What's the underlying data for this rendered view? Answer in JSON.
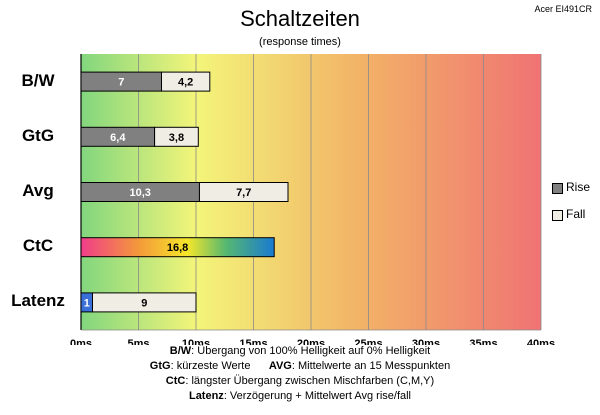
{
  "header": {
    "title": "Schaltzeiten",
    "subtitle": "(response times)",
    "model": "Acer EI491CR"
  },
  "colors": {
    "rise": "#808080",
    "fall": "#f0ede4",
    "latency_rise": "#3a6fd8",
    "background_gradient": [
      "#7cd67c",
      "#f5f57a",
      "#f0a060",
      "#f07070"
    ]
  },
  "chart_data": {
    "type": "bar",
    "orientation": "horizontal",
    "stacked": true,
    "categories": [
      "B/W",
      "GtG",
      "Avg",
      "CtC",
      "Latenz"
    ],
    "series": [
      {
        "name": "Rise",
        "values": [
          7,
          6.4,
          10.3,
          16.8,
          1
        ]
      },
      {
        "name": "Fall",
        "values": [
          4.2,
          3.8,
          7.7,
          null,
          9
        ]
      }
    ],
    "data_labels": [
      [
        "7",
        "4,2"
      ],
      [
        "6,4",
        "3,8"
      ],
      [
        "10,3",
        "7,7"
      ],
      [
        "16,8",
        ""
      ],
      [
        "1",
        "9"
      ]
    ],
    "xlim": [
      0,
      40
    ],
    "xticks": [
      "0ms",
      "5ms",
      "10ms",
      "15ms",
      "20ms",
      "25ms",
      "30ms",
      "35ms",
      "40ms"
    ],
    "grid": true,
    "legend": "right"
  },
  "legend": [
    {
      "label": "Rise",
      "color": "#808080"
    },
    {
      "label": "Fall",
      "color": "#f0ede4"
    }
  ],
  "footnotes": [
    {
      "bold": "B/W",
      "text": ":  Übergang von 100% Helligkeit auf 0% Helligkeit"
    },
    {
      "bold": "GtG",
      "text": ": kürzeste  Werte",
      "bold2": "AVG",
      "text2": ": Mittelwerte  an 15 Messpunkten"
    },
    {
      "bold": "CtC",
      "text": ": längster Übergang  zwischen Mischfarben  (C,M,Y)"
    },
    {
      "bold": "Latenz",
      "text": ": Verzögerung  + Mittelwert  Avg rise/fall"
    }
  ]
}
